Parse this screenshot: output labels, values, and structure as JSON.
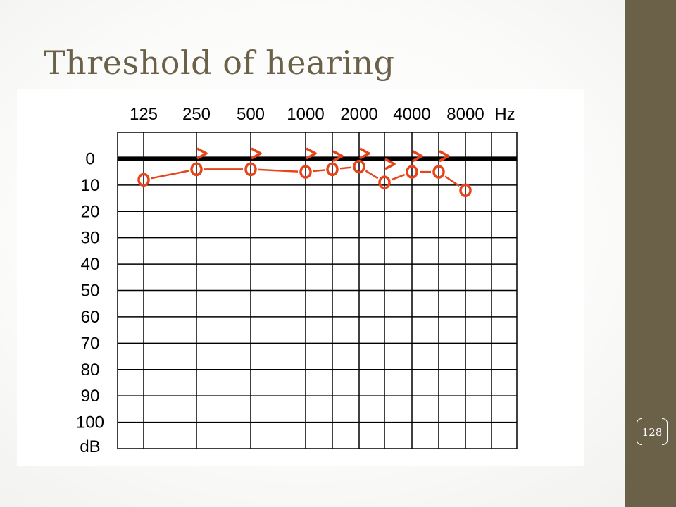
{
  "slide": {
    "title": "Threshold of hearing",
    "page_number": "128"
  },
  "colors": {
    "accent": "#6b6149",
    "marker": "#e8441b",
    "grid": "#000000",
    "zero_line": "#000000"
  },
  "chart_data": {
    "type": "scatter",
    "title": "",
    "x_unit_label": "Hz",
    "y_unit_label": "dB",
    "x_tick_labels": [
      "125",
      "250",
      "500",
      "1000",
      "2000",
      "4000",
      "8000"
    ],
    "y_tick_labels": [
      "0",
      "10",
      "20",
      "30",
      "40",
      "50",
      "60",
      "70",
      "80",
      "90",
      "100"
    ],
    "ylim": [
      -10,
      110
    ],
    "y_reversed": true,
    "reference_line": {
      "y": 0,
      "style": "thick"
    },
    "series": [
      {
        "marker": "circle",
        "connected": true,
        "points": [
          {
            "x": "125",
            "y": 8
          },
          {
            "x": "250",
            "y": 4
          },
          {
            "x": "500",
            "y": 4
          },
          {
            "x": "1000",
            "y": 5
          },
          {
            "x": "1500",
            "y": 4
          },
          {
            "x": "2000",
            "y": 3
          },
          {
            "x": "3000",
            "y": 9
          },
          {
            "x": "4000",
            "y": 5
          },
          {
            "x": "6000",
            "y": 5
          },
          {
            "x": "8000",
            "y": 12
          }
        ]
      },
      {
        "marker": "chevron",
        "connected": false,
        "points": [
          {
            "x": "250",
            "y": -2
          },
          {
            "x": "500",
            "y": -2
          },
          {
            "x": "1000",
            "y": -2
          },
          {
            "x": "1500",
            "y": -1
          },
          {
            "x": "2000",
            "y": -2
          },
          {
            "x": "3000",
            "y": 2
          },
          {
            "x": "4000",
            "y": -1
          },
          {
            "x": "6000",
            "y": -1
          }
        ]
      }
    ]
  }
}
